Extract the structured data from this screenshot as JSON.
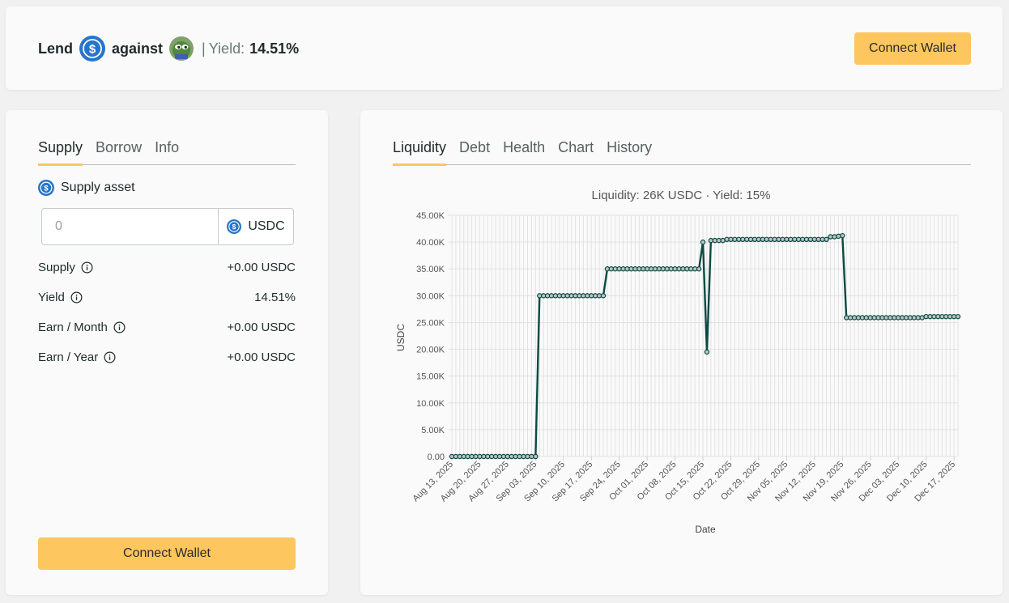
{
  "header": {
    "lend_label": "Lend",
    "against_label": "against",
    "separator": "|",
    "yield_label": "Yield:",
    "yield_value": "14.51%",
    "connect_label": "Connect Wallet"
  },
  "left": {
    "tabs": [
      {
        "label": "Supply",
        "active": true
      },
      {
        "label": "Borrow",
        "active": false
      },
      {
        "label": "Info",
        "active": false
      }
    ],
    "asset_label": "Supply asset",
    "amount_placeholder": "0",
    "asset_symbol": "USDC",
    "stats": [
      {
        "label": "Supply",
        "value": "+0.00 USDC"
      },
      {
        "label": "Yield",
        "value": "14.51%"
      },
      {
        "label": "Earn / Month",
        "value": "+0.00 USDC"
      },
      {
        "label": "Earn / Year",
        "value": "+0.00 USDC"
      }
    ],
    "connect_label": "Connect Wallet"
  },
  "right": {
    "tabs": [
      {
        "label": "Liquidity",
        "active": true
      },
      {
        "label": "Debt",
        "active": false
      },
      {
        "label": "Health",
        "active": false
      },
      {
        "label": "Chart",
        "active": false
      },
      {
        "label": "History",
        "active": false
      }
    ]
  },
  "colors": {
    "accent": "#fdc65f",
    "usdc_blue": "#2775ca",
    "line": "#0b4a42"
  },
  "icons": {
    "usdc": "usdc-coin-icon",
    "collateral": "pepe-frog-icon",
    "info": "info-circle-icon"
  },
  "chart_data": {
    "type": "line",
    "title": "Liquidity: 26K USDC · Yield: 15%",
    "xlabel": "Date",
    "ylabel": "USDC",
    "ylim": [
      0,
      45000
    ],
    "yticks": [
      "0.00",
      "5.00K",
      "10.00K",
      "15.00K",
      "20.00K",
      "25.00K",
      "30.00K",
      "35.00K",
      "40.00K",
      "45.00K"
    ],
    "xticks": [
      "Aug 13, 2025",
      "Aug 20, 2025",
      "Aug 27, 2025",
      "Sep 03, 2025",
      "Sep 10, 2025",
      "Sep 17, 2025",
      "Sep 24, 2025",
      "Oct 01, 2025",
      "Oct 08, 2025",
      "Oct 15, 2025",
      "Oct 22, 2025",
      "Oct 29, 2025",
      "Nov 05, 2025",
      "Nov 12, 2025",
      "Nov 19, 2025",
      "Nov 26, 2025",
      "Dec 03, 2025",
      "Dec 10, 2025",
      "Dec 17, 2025"
    ],
    "grid": true,
    "legend": "none",
    "series": [
      {
        "points": [
          [
            "2025-08-13",
            0
          ],
          [
            "2025-08-14",
            0
          ],
          [
            "2025-08-15",
            0
          ],
          [
            "2025-08-16",
            0
          ],
          [
            "2025-08-17",
            0
          ],
          [
            "2025-08-18",
            0
          ],
          [
            "2025-08-19",
            0
          ],
          [
            "2025-08-20",
            0
          ],
          [
            "2025-08-21",
            0
          ],
          [
            "2025-08-22",
            0
          ],
          [
            "2025-08-23",
            0
          ],
          [
            "2025-08-24",
            0
          ],
          [
            "2025-08-25",
            0
          ],
          [
            "2025-08-26",
            0
          ],
          [
            "2025-08-27",
            0
          ],
          [
            "2025-08-28",
            0
          ],
          [
            "2025-08-29",
            0
          ],
          [
            "2025-08-30",
            0
          ],
          [
            "2025-08-31",
            0
          ],
          [
            "2025-09-01",
            0
          ],
          [
            "2025-09-02",
            0
          ],
          [
            "2025-09-03",
            0
          ],
          [
            "2025-09-04",
            30000
          ],
          [
            "2025-09-05",
            30000
          ],
          [
            "2025-09-06",
            30000
          ],
          [
            "2025-09-07",
            30000
          ],
          [
            "2025-09-08",
            30000
          ],
          [
            "2025-09-09",
            30000
          ],
          [
            "2025-09-10",
            30000
          ],
          [
            "2025-09-11",
            30000
          ],
          [
            "2025-09-12",
            30000
          ],
          [
            "2025-09-13",
            30000
          ],
          [
            "2025-09-14",
            30000
          ],
          [
            "2025-09-15",
            30000
          ],
          [
            "2025-09-16",
            30000
          ],
          [
            "2025-09-17",
            30000
          ],
          [
            "2025-09-18",
            30000
          ],
          [
            "2025-09-19",
            30000
          ],
          [
            "2025-09-20",
            30000
          ],
          [
            "2025-09-21",
            35000
          ],
          [
            "2025-09-22",
            35000
          ],
          [
            "2025-09-23",
            35000
          ],
          [
            "2025-09-24",
            35000
          ],
          [
            "2025-09-25",
            35000
          ],
          [
            "2025-09-26",
            35000
          ],
          [
            "2025-09-27",
            35000
          ],
          [
            "2025-09-28",
            35000
          ],
          [
            "2025-09-29",
            35000
          ],
          [
            "2025-09-30",
            35000
          ],
          [
            "2025-10-01",
            35000
          ],
          [
            "2025-10-02",
            35000
          ],
          [
            "2025-10-03",
            35000
          ],
          [
            "2025-10-04",
            35000
          ],
          [
            "2025-10-05",
            35000
          ],
          [
            "2025-10-06",
            35000
          ],
          [
            "2025-10-07",
            35000
          ],
          [
            "2025-10-08",
            35000
          ],
          [
            "2025-10-09",
            35000
          ],
          [
            "2025-10-10",
            35000
          ],
          [
            "2025-10-11",
            35000
          ],
          [
            "2025-10-12",
            35000
          ],
          [
            "2025-10-13",
            35000
          ],
          [
            "2025-10-14",
            35000
          ],
          [
            "2025-10-15",
            40000
          ],
          [
            "2025-10-16",
            19500
          ],
          [
            "2025-10-17",
            40300
          ],
          [
            "2025-10-18",
            40300
          ],
          [
            "2025-10-19",
            40300
          ],
          [
            "2025-10-20",
            40300
          ],
          [
            "2025-10-21",
            40500
          ],
          [
            "2025-10-22",
            40500
          ],
          [
            "2025-10-23",
            40500
          ],
          [
            "2025-10-24",
            40500
          ],
          [
            "2025-10-25",
            40500
          ],
          [
            "2025-10-26",
            40500
          ],
          [
            "2025-10-27",
            40500
          ],
          [
            "2025-10-28",
            40500
          ],
          [
            "2025-10-29",
            40500
          ],
          [
            "2025-10-30",
            40500
          ],
          [
            "2025-10-31",
            40500
          ],
          [
            "2025-11-01",
            40500
          ],
          [
            "2025-11-02",
            40500
          ],
          [
            "2025-11-03",
            40500
          ],
          [
            "2025-11-04",
            40500
          ],
          [
            "2025-11-05",
            40500
          ],
          [
            "2025-11-06",
            40500
          ],
          [
            "2025-11-07",
            40500
          ],
          [
            "2025-11-08",
            40500
          ],
          [
            "2025-11-09",
            40500
          ],
          [
            "2025-11-10",
            40500
          ],
          [
            "2025-11-11",
            40500
          ],
          [
            "2025-11-12",
            40500
          ],
          [
            "2025-11-13",
            40500
          ],
          [
            "2025-11-14",
            40500
          ],
          [
            "2025-11-15",
            40500
          ],
          [
            "2025-11-16",
            41000
          ],
          [
            "2025-11-17",
            41000
          ],
          [
            "2025-11-18",
            41100
          ],
          [
            "2025-11-19",
            41200
          ],
          [
            "2025-11-20",
            25900
          ],
          [
            "2025-11-21",
            25900
          ],
          [
            "2025-11-22",
            25900
          ],
          [
            "2025-11-23",
            25900
          ],
          [
            "2025-11-24",
            25900
          ],
          [
            "2025-11-25",
            25900
          ],
          [
            "2025-11-26",
            25900
          ],
          [
            "2025-11-27",
            25900
          ],
          [
            "2025-11-28",
            25900
          ],
          [
            "2025-11-29",
            25900
          ],
          [
            "2025-11-30",
            25900
          ],
          [
            "2025-12-01",
            25900
          ],
          [
            "2025-12-02",
            25900
          ],
          [
            "2025-12-03",
            25900
          ],
          [
            "2025-12-04",
            25900
          ],
          [
            "2025-12-05",
            25900
          ],
          [
            "2025-12-06",
            25900
          ],
          [
            "2025-12-07",
            25900
          ],
          [
            "2025-12-08",
            25900
          ],
          [
            "2025-12-09",
            25900
          ],
          [
            "2025-12-10",
            26100
          ],
          [
            "2025-12-11",
            26100
          ],
          [
            "2025-12-12",
            26100
          ],
          [
            "2025-12-13",
            26100
          ],
          [
            "2025-12-14",
            26100
          ],
          [
            "2025-12-15",
            26100
          ],
          [
            "2025-12-16",
            26100
          ],
          [
            "2025-12-17",
            26100
          ],
          [
            "2025-12-18",
            26100
          ]
        ]
      }
    ]
  }
}
